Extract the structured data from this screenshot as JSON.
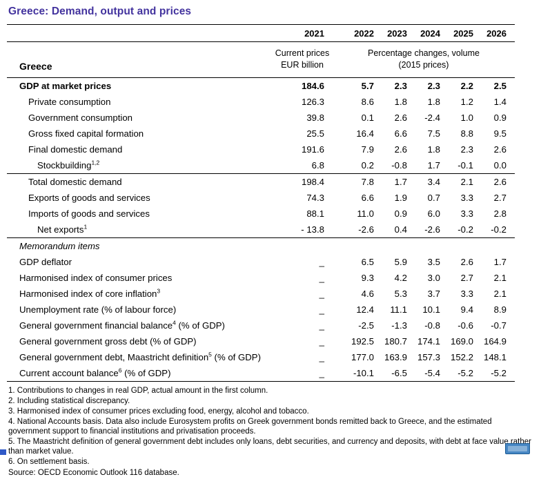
{
  "title": "Greece: Demand, output and prices",
  "colors": {
    "title": "#43339E",
    "statlink": "#4787C4",
    "artifact": "#2F59C7"
  },
  "table": {
    "region_label": "Greece",
    "years": [
      "2021",
      "2022",
      "2023",
      "2024",
      "2025",
      "2026"
    ],
    "unit_col_2021": "Current prices\nEUR billion",
    "unit_cols_rest": "Percentage changes, volume\n(2015 prices)",
    "rows": [
      {
        "label": "GDP at market prices",
        "bold": true,
        "indent": 0,
        "values": [
          "184.6",
          "5.7",
          "2.3",
          "2.3",
          "2.2",
          "2.5"
        ]
      },
      {
        "label": "Private consumption",
        "indent": 1,
        "values": [
          "126.3",
          "8.6",
          "1.8",
          "1.8",
          "1.2",
          "1.4"
        ]
      },
      {
        "label": "Government consumption",
        "indent": 1,
        "values": [
          "39.8",
          "0.1",
          "2.6",
          "-2.4",
          "1.0",
          "0.9"
        ]
      },
      {
        "label": "Gross fixed capital formation",
        "indent": 1,
        "values": [
          "25.5",
          "16.4",
          "6.6",
          "7.5",
          "8.8",
          "9.5"
        ]
      },
      {
        "label": "Final domestic demand",
        "indent": 1,
        "values": [
          "191.6",
          "7.9",
          "2.6",
          "1.8",
          "2.3",
          "2.6"
        ]
      },
      {
        "label": "Stockbuilding",
        "sup": "1,2",
        "indent": 2,
        "values": [
          "6.8",
          "0.2",
          "-0.8",
          "1.7",
          "-0.1",
          "0.0"
        ]
      },
      {
        "label": "Total domestic demand",
        "indent": 1,
        "rule_top": true,
        "values": [
          "198.4",
          "7.8",
          "1.7",
          "3.4",
          "2.1",
          "2.6"
        ]
      },
      {
        "label": "Exports of goods and services",
        "indent": 1,
        "values": [
          "74.3",
          "6.6",
          "1.9",
          "0.7",
          "3.3",
          "2.7"
        ]
      },
      {
        "label": "Imports of goods and services",
        "indent": 1,
        "values": [
          "88.1",
          "11.0",
          "0.9",
          "6.0",
          "3.3",
          "2.8"
        ]
      },
      {
        "label": "Net exports",
        "sup": "1",
        "indent": 2,
        "values": [
          "- 13.8",
          "-2.6",
          "0.4",
          "-2.6",
          "-0.2",
          "-0.2"
        ]
      },
      {
        "label": "Memorandum items",
        "section": true,
        "rule_top": true
      },
      {
        "label": "GDP deflator",
        "indent": 0,
        "values": [
          "_",
          "6.5",
          "5.9",
          "3.5",
          "2.6",
          "1.7"
        ]
      },
      {
        "label": "Harmonised index of consumer prices",
        "indent": 0,
        "values": [
          "_",
          "9.3",
          "4.2",
          "3.0",
          "2.7",
          "2.1"
        ]
      },
      {
        "label": "Harmonised index of core inflation",
        "sup": "3",
        "indent": 0,
        "values": [
          "_",
          "4.6",
          "5.3",
          "3.7",
          "3.3",
          "2.1"
        ]
      },
      {
        "label": "Unemployment rate (% of labour force)",
        "indent": 0,
        "values": [
          "_",
          "12.4",
          "11.1",
          "10.1",
          "9.4",
          "8.9"
        ]
      },
      {
        "label": "General government financial balance",
        "sup": "4",
        "suffix": " (% of GDP)",
        "indent": 0,
        "values": [
          "_",
          "-2.5",
          "-1.3",
          "-0.8",
          "-0.6",
          "-0.7"
        ]
      },
      {
        "label": "General government gross debt (% of GDP)",
        "indent": 0,
        "values": [
          "_",
          "192.5",
          "180.7",
          "174.1",
          "169.0",
          "164.9"
        ]
      },
      {
        "label": "General government debt, Maastricht definition",
        "sup": "5",
        "suffix": " (% of GDP)",
        "indent": 0,
        "values": [
          "_",
          "177.0",
          "163.9",
          "157.3",
          "152.2",
          "148.1"
        ]
      },
      {
        "label": "Current account balance",
        "sup": "6",
        "suffix": " (% of GDP)",
        "indent": 0,
        "values": [
          "_",
          "-10.1",
          "-6.5",
          "-5.4",
          "-5.2",
          "-5.2"
        ]
      }
    ]
  },
  "footnotes": [
    "1. Contributions to changes in real GDP, actual amount in the first column.",
    "2. Including statistical discrepancy.",
    "3. Harmonised index of consumer prices excluding food, energy, alcohol and tobacco.",
    "4. National Accounts basis. Data also include Eurosystem profits on Greek government bonds remitted back to Greece, and the estimated government support to financial institutions and privatisation proceeds.",
    "5. The Maastricht definition of general government debt includes only loans, debt securities, and currency and deposits, with debt at face value rather than market value.",
    "6. On settlement basis."
  ],
  "source_line": "Source: OECD Economic Outlook 116 database."
}
